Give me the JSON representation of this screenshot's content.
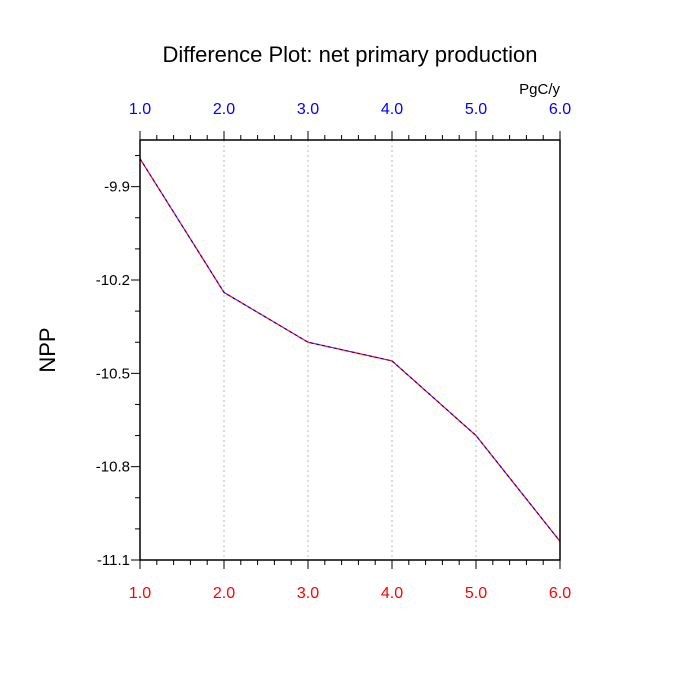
{
  "chart_data": {
    "type": "line",
    "title": "Difference Plot: net primary production",
    "ylabel": "NPP",
    "xlabel": "",
    "units_label": "PgC/y",
    "x": [
      1.0,
      2.0,
      3.0,
      4.0,
      5.0,
      6.0
    ],
    "series": [
      {
        "values": [
          -9.81,
          -10.24,
          -10.4,
          -10.46,
          -10.7,
          -11.04
        ]
      }
    ],
    "xlim": [
      1.0,
      6.0
    ],
    "ylim": [
      -11.1,
      -9.75
    ],
    "x_ticks": [
      "1.0",
      "2.0",
      "3.0",
      "4.0",
      "5.0",
      "6.0"
    ],
    "y_ticks": [
      {
        "value": -9.9,
        "label": "-9.9"
      },
      {
        "value": -10.2,
        "label": "-10.2"
      },
      {
        "value": -10.5,
        "label": "-10.5"
      },
      {
        "value": -10.8,
        "label": "-10.8"
      },
      {
        "value": -11.1,
        "label": "-11.1"
      }
    ],
    "grid": "vertical dotted at major x ticks",
    "colors": {
      "line_a": "#ff0000",
      "line_b": "#0000ff",
      "bottom_tick_labels": "#ff0000",
      "top_tick_labels": "#0000ff",
      "grid": "#bbbbbb",
      "axes": "#000000"
    }
  }
}
